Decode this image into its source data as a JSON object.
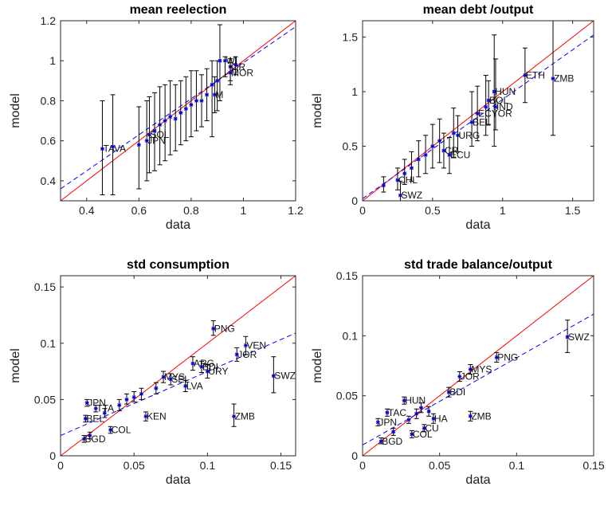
{
  "chart_data": [
    {
      "type": "scatter",
      "title": "mean reelection",
      "xlabel": "data",
      "ylabel": "model",
      "xlim": [
        0.3,
        1.2
      ],
      "ylim": [
        0.3,
        1.2
      ],
      "xticks": [
        0.4,
        0.6,
        0.8,
        1,
        1.2
      ],
      "xtick_labels": [
        "0.4",
        "0.6",
        "0.8",
        "1",
        "1.2"
      ],
      "yticks": [
        0.4,
        0.6,
        0.8,
        1,
        1.2
      ],
      "ytick_labels": [
        "0.4",
        "0.6",
        "0.8",
        "1",
        "1.2"
      ],
      "diagonal": true,
      "fit_line": [
        [
          0.3,
          0.36
        ],
        [
          1.2,
          1.17
        ]
      ],
      "points": [
        {
          "label": "TAVA",
          "x": 0.46,
          "y": 0.56,
          "lo": 0.33,
          "hi": 0.8
        },
        {
          "label": "",
          "x": 0.5,
          "y": 0.57,
          "lo": 0.33,
          "hi": 0.83
        },
        {
          "label": "",
          "x": 0.6,
          "y": 0.58,
          "lo": 0.36,
          "hi": 0.77
        },
        {
          "label": "JPN",
          "x": 0.63,
          "y": 0.6,
          "lo": 0.4,
          "hi": 0.8
        },
        {
          "label": "SOL",
          "x": 0.64,
          "y": 0.63,
          "lo": 0.44,
          "hi": 0.82
        },
        {
          "label": "",
          "x": 0.66,
          "y": 0.65,
          "lo": 0.45,
          "hi": 0.84
        },
        {
          "label": "",
          "x": 0.68,
          "y": 0.68,
          "lo": 0.48,
          "hi": 0.87
        },
        {
          "label": "",
          "x": 0.7,
          "y": 0.7,
          "lo": 0.5,
          "hi": 0.88
        },
        {
          "label": "",
          "x": 0.72,
          "y": 0.72,
          "lo": 0.53,
          "hi": 0.9
        },
        {
          "label": "",
          "x": 0.74,
          "y": 0.71,
          "lo": 0.55,
          "hi": 0.88
        },
        {
          "label": "",
          "x": 0.76,
          "y": 0.74,
          "lo": 0.58,
          "hi": 0.9
        },
        {
          "label": "",
          "x": 0.78,
          "y": 0.76,
          "lo": 0.6,
          "hi": 0.92
        },
        {
          "label": "",
          "x": 0.8,
          "y": 0.78,
          "lo": 0.62,
          "hi": 0.95
        },
        {
          "label": "",
          "x": 0.82,
          "y": 0.8,
          "lo": 0.65,
          "hi": 0.95
        },
        {
          "label": "",
          "x": 0.84,
          "y": 0.8,
          "lo": 0.67,
          "hi": 0.93
        },
        {
          "label": "",
          "x": 0.86,
          "y": 0.83,
          "lo": 0.7,
          "hi": 0.96
        },
        {
          "label": "M",
          "x": 0.89,
          "y": 0.83,
          "lo": 0.74,
          "hi": 0.92
        },
        {
          "label": "",
          "x": 0.88,
          "y": 0.88,
          "lo": 0.62,
          "hi": 1.0
        },
        {
          "label": "",
          "x": 0.9,
          "y": 0.9,
          "lo": 0.75,
          "hi": 1.0
        },
        {
          "label": "",
          "x": 0.91,
          "y": 1.0,
          "lo": 0.8,
          "hi": 1.18
        },
        {
          "label": "WI",
          "x": 0.93,
          "y": 1.0,
          "lo": 0.92,
          "hi": 1.02
        },
        {
          "label": "OR",
          "x": 0.95,
          "y": 0.97,
          "lo": 0.9,
          "hi": 1.01
        },
        {
          "label": "MOR",
          "x": 0.95,
          "y": 0.94,
          "lo": 0.88,
          "hi": 0.99
        },
        {
          "label": "",
          "x": 0.97,
          "y": 0.98,
          "lo": 0.93,
          "hi": 1.02
        }
      ]
    },
    {
      "type": "scatter",
      "title": "mean debt /output",
      "xlabel": "data",
      "ylabel": "model",
      "xlim": [
        0,
        1.65
      ],
      "ylim": [
        0,
        1.65
      ],
      "xticks": [
        0,
        0.5,
        1,
        1.5
      ],
      "xtick_labels": [
        "0",
        "0.5",
        "1",
        "1.5"
      ],
      "yticks": [
        0,
        0.5,
        1,
        1.5
      ],
      "ytick_labels": [
        "0",
        "0.5",
        "1",
        "1.5"
      ],
      "diagonal": true,
      "fit_line": [
        [
          0,
          0.02
        ],
        [
          1.65,
          1.52
        ]
      ],
      "points": [
        {
          "label": "SWZ",
          "x": 0.27,
          "y": 0.05,
          "lo": 0.0,
          "hi": 0.18
        },
        {
          "label": "",
          "x": 0.15,
          "y": 0.14,
          "lo": 0.08,
          "hi": 0.22
        },
        {
          "label": "CHL",
          "x": 0.25,
          "y": 0.19,
          "lo": 0.1,
          "hi": 0.3
        },
        {
          "label": "",
          "x": 0.3,
          "y": 0.25,
          "lo": 0.15,
          "hi": 0.38
        },
        {
          "label": "",
          "x": 0.35,
          "y": 0.3,
          "lo": 0.18,
          "hi": 0.45
        },
        {
          "label": "",
          "x": 0.4,
          "y": 0.38,
          "lo": 0.22,
          "hi": 0.55
        },
        {
          "label": "",
          "x": 0.45,
          "y": 0.42,
          "lo": 0.25,
          "hi": 0.6
        },
        {
          "label": "",
          "x": 0.5,
          "y": 0.5,
          "lo": 0.3,
          "hi": 0.7
        },
        {
          "label": "",
          "x": 0.55,
          "y": 0.55,
          "lo": 0.35,
          "hi": 0.75
        },
        {
          "label": "CR",
          "x": 0.58,
          "y": 0.46,
          "lo": 0.3,
          "hi": 0.62
        },
        {
          "label": "ECU",
          "x": 0.62,
          "y": 0.42,
          "lo": 0.25,
          "hi": 0.58
        },
        {
          "label": "",
          "x": 0.65,
          "y": 0.62,
          "lo": 0.4,
          "hi": 0.85
        },
        {
          "label": "URG",
          "x": 0.68,
          "y": 0.6,
          "lo": 0.45,
          "hi": 0.78
        },
        {
          "label": "BEL",
          "x": 0.78,
          "y": 0.72,
          "lo": 0.5,
          "hi": 1.0
        },
        {
          "label": "ECYOR",
          "x": 0.82,
          "y": 0.8,
          "lo": 0.55,
          "hi": 1.05
        },
        {
          "label": "",
          "x": 0.88,
          "y": 0.86,
          "lo": 0.6,
          "hi": 1.15
        },
        {
          "label": "BOL",
          "x": 0.9,
          "y": 0.92,
          "lo": 0.7,
          "hi": 1.1
        },
        {
          "label": "IND",
          "x": 0.95,
          "y": 0.86,
          "lo": 0.65,
          "hi": 1.3
        },
        {
          "label": "HUN",
          "x": 0.94,
          "y": 1.0,
          "lo": 0.5,
          "hi": 1.52
        },
        {
          "label": "ETH",
          "x": 1.16,
          "y": 1.15,
          "lo": 0.9,
          "hi": 1.4
        },
        {
          "label": "ZMB",
          "x": 1.36,
          "y": 1.12,
          "lo": 0.6,
          "hi": 1.65
        }
      ]
    },
    {
      "type": "scatter",
      "title": "std consumption",
      "xlabel": "data",
      "ylabel": "model",
      "xlim": [
        0,
        0.16
      ],
      "ylim": [
        0,
        0.16
      ],
      "xticks": [
        0,
        0.05,
        0.1,
        0.15
      ],
      "xtick_labels": [
        "0",
        "0.05",
        "0.1",
        "0.15"
      ],
      "yticks": [
        0,
        0.05,
        0.1,
        0.15
      ],
      "ytick_labels": [
        "0",
        "0.05",
        "0.1",
        "0.15"
      ],
      "diagonal": true,
      "fit_line": [
        [
          0,
          0.018
        ],
        [
          0.16,
          0.109
        ]
      ],
      "points": [
        {
          "label": "BGD",
          "x": 0.016,
          "y": 0.015,
          "lo": 0.012,
          "hi": 0.018
        },
        {
          "label": "",
          "x": 0.02,
          "y": 0.018,
          "lo": 0.015,
          "hi": 0.021
        },
        {
          "label": "JPN",
          "x": 0.018,
          "y": 0.047,
          "lo": 0.044,
          "hi": 0.05
        },
        {
          "label": "BEL",
          "x": 0.017,
          "y": 0.033,
          "lo": 0.03,
          "hi": 0.036
        },
        {
          "label": "TTA",
          "x": 0.024,
          "y": 0.042,
          "lo": 0.039,
          "hi": 0.045
        },
        {
          "label": "",
          "x": 0.03,
          "y": 0.038,
          "lo": 0.034,
          "hi": 0.042
        },
        {
          "label": "COL",
          "x": 0.034,
          "y": 0.023,
          "lo": 0.02,
          "hi": 0.026
        },
        {
          "label": "",
          "x": 0.04,
          "y": 0.045,
          "lo": 0.04,
          "hi": 0.05
        },
        {
          "label": "",
          "x": 0.045,
          "y": 0.05,
          "lo": 0.046,
          "hi": 0.055
        },
        {
          "label": "",
          "x": 0.05,
          "y": 0.052,
          "lo": 0.048,
          "hi": 0.057
        },
        {
          "label": "",
          "x": 0.055,
          "y": 0.055,
          "lo": 0.05,
          "hi": 0.06
        },
        {
          "label": "KEN",
          "x": 0.058,
          "y": 0.035,
          "lo": 0.031,
          "hi": 0.039
        },
        {
          "label": "",
          "x": 0.065,
          "y": 0.06,
          "lo": 0.055,
          "hi": 0.065
        },
        {
          "label": "MYS",
          "x": 0.07,
          "y": 0.07,
          "lo": 0.065,
          "hi": 0.075
        },
        {
          "label": "SEL",
          "x": 0.075,
          "y": 0.068,
          "lo": 0.063,
          "hi": 0.073
        },
        {
          "label": "ARG",
          "x": 0.09,
          "y": 0.082,
          "lo": 0.076,
          "hi": 0.088
        },
        {
          "label": "BDI",
          "x": 0.096,
          "y": 0.079,
          "lo": 0.074,
          "hi": 0.084
        },
        {
          "label": "LVA",
          "x": 0.085,
          "y": 0.062,
          "lo": 0.057,
          "hi": 0.067
        },
        {
          "label": "URY",
          "x": 0.1,
          "y": 0.075,
          "lo": 0.069,
          "hi": 0.081
        },
        {
          "label": "PNG",
          "x": 0.104,
          "y": 0.113,
          "lo": 0.107,
          "hi": 0.12
        },
        {
          "label": "JOR",
          "x": 0.12,
          "y": 0.09,
          "lo": 0.084,
          "hi": 0.096
        },
        {
          "label": "VEN",
          "x": 0.126,
          "y": 0.098,
          "lo": 0.09,
          "hi": 0.106
        },
        {
          "label": "ZMB",
          "x": 0.118,
          "y": 0.035,
          "lo": 0.026,
          "hi": 0.046
        },
        {
          "label": "SWZ",
          "x": 0.145,
          "y": 0.071,
          "lo": 0.056,
          "hi": 0.088
        }
      ]
    },
    {
      "type": "scatter",
      "title": "std trade balance/output",
      "xlabel": "data",
      "ylabel": "model",
      "xlim": [
        0,
        0.15
      ],
      "ylim": [
        0,
        0.15
      ],
      "xticks": [
        0,
        0.05,
        0.1,
        0.15
      ],
      "xtick_labels": [
        "0",
        "0.05",
        "0.1",
        "0.15"
      ],
      "yticks": [
        0,
        0.05,
        0.1,
        0.15
      ],
      "ytick_labels": [
        "0",
        "0.05",
        "0.1",
        "0.15"
      ],
      "diagonal": true,
      "fit_line": [
        [
          0,
          0.009
        ],
        [
          0.15,
          0.118
        ]
      ],
      "points": [
        {
          "label": "BGD",
          "x": 0.012,
          "y": 0.012,
          "lo": 0.01,
          "hi": 0.015
        },
        {
          "label": "JPN",
          "x": 0.01,
          "y": 0.028,
          "lo": 0.025,
          "hi": 0.031
        },
        {
          "label": "TAC",
          "x": 0.016,
          "y": 0.036,
          "lo": 0.033,
          "hi": 0.039
        },
        {
          "label": "",
          "x": 0.02,
          "y": 0.02,
          "lo": 0.017,
          "hi": 0.023
        },
        {
          "label": "HUN",
          "x": 0.027,
          "y": 0.046,
          "lo": 0.043,
          "hi": 0.049
        },
        {
          "label": "",
          "x": 0.03,
          "y": 0.03,
          "lo": 0.027,
          "hi": 0.033
        },
        {
          "label": "COL",
          "x": 0.032,
          "y": 0.018,
          "lo": 0.015,
          "hi": 0.021
        },
        {
          "label": "",
          "x": 0.035,
          "y": 0.035,
          "lo": 0.031,
          "hi": 0.039
        },
        {
          "label": "",
          "x": 0.038,
          "y": 0.04,
          "lo": 0.036,
          "hi": 0.044
        },
        {
          "label": "CU",
          "x": 0.04,
          "y": 0.023,
          "lo": 0.02,
          "hi": 0.026
        },
        {
          "label": "",
          "x": 0.043,
          "y": 0.037,
          "lo": 0.033,
          "hi": 0.041
        },
        {
          "label": "HA",
          "x": 0.046,
          "y": 0.031,
          "lo": 0.027,
          "hi": 0.035
        },
        {
          "label": "BDI",
          "x": 0.056,
          "y": 0.053,
          "lo": 0.049,
          "hi": 0.057
        },
        {
          "label": "JOR",
          "x": 0.063,
          "y": 0.066,
          "lo": 0.062,
          "hi": 0.07
        },
        {
          "label": "MYS",
          "x": 0.07,
          "y": 0.072,
          "lo": 0.068,
          "hi": 0.076
        },
        {
          "label": "ZMB",
          "x": 0.07,
          "y": 0.033,
          "lo": 0.029,
          "hi": 0.037
        },
        {
          "label": "PNG",
          "x": 0.087,
          "y": 0.082,
          "lo": 0.078,
          "hi": 0.086
        },
        {
          "label": "SWZ",
          "x": 0.133,
          "y": 0.099,
          "lo": 0.086,
          "hi": 0.113
        }
      ]
    }
  ]
}
